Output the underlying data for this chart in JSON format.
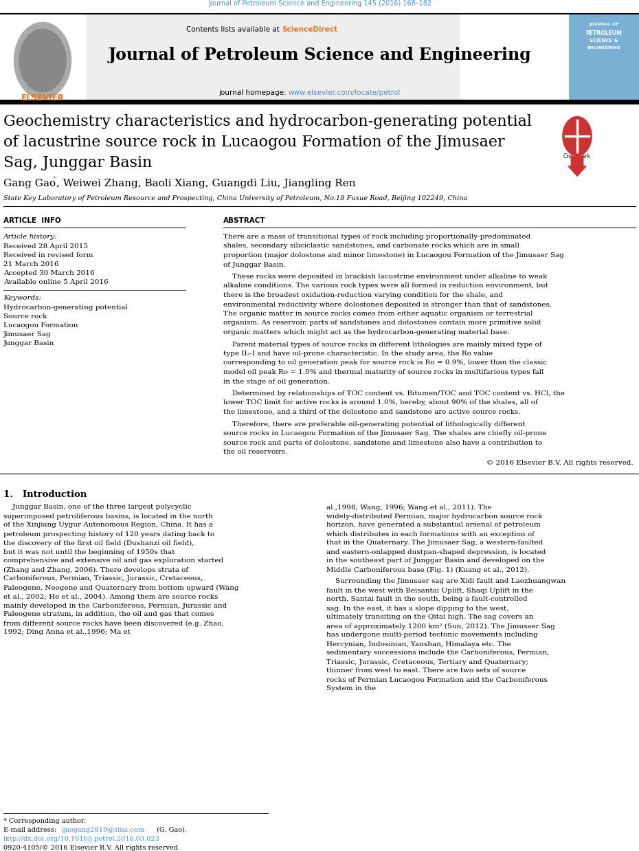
{
  "page_width": 9.92,
  "page_height": 13.23,
  "bg_color": "#ffffff",
  "top_journal_ref": "Journal of Petroleum Science and Engineering 145 (2016) 168–182",
  "top_journal_ref_color": "#4a90d9",
  "header_bg": "#e8e8e8",
  "journal_title": "Journal of Petroleum Science and Engineering",
  "journal_homepage_url": "www.elsevier.com/locate/petrol",
  "journal_homepage_url_color": "#4a90d9",
  "article_title_line1": "Geochemistry characteristics and hydrocarbon-generating potential",
  "article_title_line2": "of lacustrine source rock in Lucaogou Formation of the Jimusaer",
  "article_title_line3": "Sag, Junggar Basin",
  "authors_text": "Gang Gao",
  "authors_rest": ", Weiwei Zhang, Baoli Xiang, Guangdi Liu, Jiangling Ren",
  "affiliation": "State Key Laboratory of Petroleum Resource and Prospecting, China University of Petroleum, No.18 Fuxue Road, Beijing 102249, China",
  "article_info_label": "ARTICLE  INFO",
  "abstract_label": "ABSTRACT",
  "article_history_label": "Article history:",
  "history_lines": [
    "Received 28 April 2015",
    "Received in revised form",
    "21 March 2016",
    "Accepted 30 March 2016",
    "Available online 5 April 2016"
  ],
  "keywords_label": "Keywords:",
  "keywords": [
    "Hydrocarbon-generating potential",
    "Source rock",
    "Lucaogou Formation",
    "Jimusaer Sag",
    "Junggar Basin"
  ],
  "abstract_para1": "There are a mass of transitional types of rock including proportionally-predominated shales, secondary siliciclastic sandstones, and carbonate rocks which are in small proportion (major dolostone and minor limestone) in Lucaogou Formation of the Jimusaer Sag of Junggar Basin.",
  "abstract_para2": "These rocks were deposited in brackish lacustrine environment under alkaline to weak alkaline conditions. The various rock types were all formed in reduction environment, but there is the broadest oxidation-reduction varying condition for the shale, and environmental reductivity where dolostones deposited is stronger than that of sandstones. The organic matter in source rocks comes from either aquatic organism or terrestrial organism. As reservoir, parts of sandstones and dolostones contain more primitive solid organic matters which might act as the hydrocarbon-generating material base.",
  "abstract_para3": "Parent material types of source rocks in different lithologies are mainly mixed type of type II₂-I and have oil-prone characteristic. In the study area, the Ro value corresponding to oil generation peak for source rock is Ro = 0.9%, lower than the classic model oil peak Ro = 1.0% and thermal maturity of source rocks in multifarious types fall in the stage of oil generation.",
  "abstract_para4": "Determined by relationships of TOC content vs. Bitumen/TOC and TOC content vs. HCl, the lower TOC limit for active rocks is around 1.0%, hereby, about 90% of the shales, all of the limestone, and a third of the dolostone and sandstone are active source rocks.",
  "abstract_para5": "Therefore, there are preferable oil-generating potential of lithologically different source rocks in Lucaogou Formation of the Jimusaer Sag. The shales are chiefly oil-prone source rock and parts of dolostone, sandstone and limestone also have a contribution to the oil reservoirs.",
  "abstract_copyright": "© 2016 Elsevier B.V. All rights reserved.",
  "section1_title": "1.   Introduction",
  "intro_col1": "Junggar Basin, one of the three largest polycyclic superimposed petroliferous basins, is located in the north of the Xinjiang Uygur Autonomous Region, China. It has a petroleum prospecting history of 120 years dating back to the discovery of the first oil field (Dushanzi oil field), but it was not until the beginning of 1950s that comprehensive and extensive oil and gas exploration started (Zhang and Zhang, 2006). There develops strata of Carboniferous, Permian, Triassic, Jurassic, Cretaceous, Paleogene, Neogene and Quaternary from bottom upward (Wang et al., 2002; He et al., 2004). Among them are source rocks mainly developed in the Carboniferous, Permian, Jurassic and Paleogene stratum, in addition, the oil and gas that comes from different source rocks have been discovered (e.g. Zhao, 1992; Ding Anna et al.,1996; Ma et",
  "intro_col2a": "al.,1998; Wang, 1996; Wang et al., 2011). The widely-distributed Permian, major hydrocarbon source rock horizon, have generated a substantial arsenal of petroleum which distributes in each formations with an exception of that in the Quaternary. The Jimusaer Sag, a western-faulted and eastern-onlapped dustpan-shaped depression, is located in the southeast part of Junggar Basin and developed on the Middle Carboniferous base (Fig. 1) (Kuang et al., 2012).",
  "intro_col2b": "Surrounding the Jimusaer sag are Xidi fault and Laozhuangwan fault in the west with Beisantai Uplift, Shaqi Uplift in the north, Santai fault in the south, being a fault-controlled sag. In the east, it has a slope dipping to the west, ultimately transiting on the Qitai high. The sag covers an area of approximately 1200 km² (Sun, 2012). The Jimusaer Sag has undergone multi-period tectonic movements including Hercynian, Indosinian, Yanshan, Himalaya etc. The sedimentary successions include the Carboniferous, Permian, Triassic, Jurassic, Cretaceous, Tertiary and Quaternary; thinner from west to east. There are two sets of source rocks of Permian Lucaogou Formation and the Carboniferous System in the",
  "footer_corresponding": "* Corresponding author.",
  "footer_email_label": "E-mail address: ",
  "footer_email": "gaogang2819@sina.com",
  "footer_email_color": "#4a90d9",
  "footer_email_suffix": " (G. Gao).",
  "footer_doi": "http://dx.doi.org/10.1016/j.petrol.2016.03.023",
  "footer_doi_color": "#4a90d9",
  "footer_issn": "0920-4105/© 2016 Elsevier B.V. All rights reserved.",
  "link_color": "#4a90d9",
  "elsevier_orange": "#e87820"
}
